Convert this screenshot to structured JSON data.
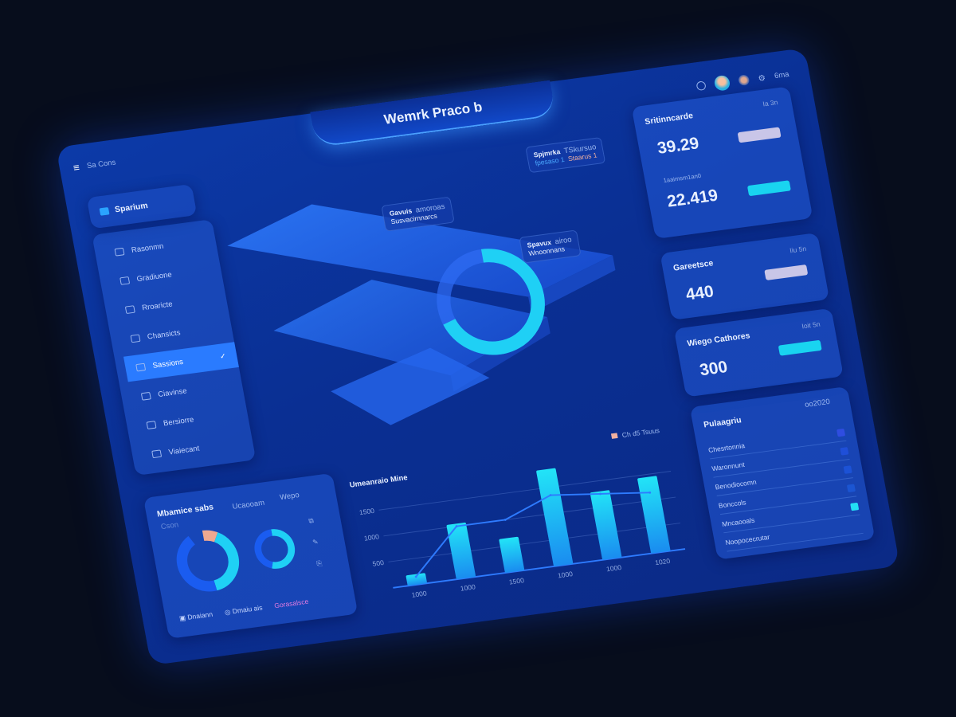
{
  "app": {
    "title": "Wemrk Praco b",
    "menu_label": "Sa Cons"
  },
  "header": {
    "user_label": "6ma",
    "icons": [
      "clock-icon",
      "avatar",
      "avatar-secondary",
      "settings-icon"
    ]
  },
  "sidebar": {
    "header": "Sparium",
    "items": [
      {
        "label": "Rasonmn",
        "icon": "list-icon"
      },
      {
        "label": "Gradiuone",
        "icon": "user-icon"
      },
      {
        "label": "Rroaricte",
        "icon": "calendar-icon"
      },
      {
        "label": "Chansicts",
        "icon": "globe-icon"
      },
      {
        "label": "Sassions",
        "icon": "grid-icon",
        "active": true
      },
      {
        "label": "Ciavinse",
        "icon": "image-icon"
      },
      {
        "label": "Bersiorre",
        "icon": "shield-icon"
      },
      {
        "label": "Viaiecant",
        "icon": "chart-icon"
      }
    ]
  },
  "tooltips": [
    {
      "title": "Spjmrka",
      "meta": "TSkursuo",
      "line1": "fpesaso 1",
      "line2": "Staarus 1"
    },
    {
      "title": "Gavuis",
      "meta": "amoroas",
      "line1": "Susvacirnnarcs"
    },
    {
      "title": "Spavux",
      "meta": "airoo",
      "line1": "Wnoonnans"
    }
  ],
  "kpis": [
    {
      "title": "Sritinncarde",
      "meta": "Ia 3n",
      "value": "39.29",
      "sub": "1aaimsm1an0",
      "value2": "22.419",
      "pill": "#c9c6e8",
      "pill2": "#19d4f0"
    },
    {
      "title": "Gareetsce",
      "meta": "Iiu 5n",
      "value": "440",
      "pill": "#c9c6e8"
    },
    {
      "title": "Wiego Cathores",
      "meta": "Ioit 5n",
      "value": "300",
      "pill": "#19d4f0"
    }
  ],
  "list_card": {
    "title": "Pulaagriu",
    "meta": "oo2020",
    "rows": [
      {
        "label": "Chesrtonnia",
        "color": "#2f4de0"
      },
      {
        "label": "Waronnunt",
        "color": "#1f4fd8"
      },
      {
        "label": "Benodiocomn",
        "color": "#1c52d6"
      },
      {
        "label": "Bonccols",
        "color": "#1b55d2"
      },
      {
        "label": "Mncaooals",
        "color": "#23e0f5"
      },
      {
        "label": "Noopocecrutar",
        "color": ""
      }
    ]
  },
  "donut_card": {
    "title": "Mbamice sabs",
    "col1": "Ucaooam",
    "col2": "Wepo",
    "sub": "Cson",
    "legend": [
      "Dnaiann",
      "Dmaiu ais",
      "Gorasalsce"
    ],
    "donut1": {
      "segments": [
        {
          "value": 0.08,
          "color": "#f0a890"
        },
        {
          "value": 0.4,
          "color": "#1fd0f5"
        },
        {
          "value": 0.44,
          "color": "#1a5cf0"
        }
      ]
    },
    "donut2": {
      "segments": [
        {
          "value": 0.55,
          "color": "#1fd0f5"
        },
        {
          "value": 0.45,
          "color": "#1a5cf0"
        }
      ]
    }
  },
  "center_gauge": {
    "value": 0.7,
    "color": "#1fd0f5"
  },
  "chart_data": {
    "type": "bar",
    "title": "Umeanraio Mine",
    "legend": "Ch d5 Tsuus",
    "categories": [
      "1000",
      "1000",
      "1500",
      "1000",
      "1000",
      "1020"
    ],
    "series": [
      {
        "type": "bar",
        "values": [
          200,
          1050,
          650,
          1850,
          1300,
          1450
        ],
        "color": "#1fd0f5"
      },
      {
        "type": "line",
        "values": [
          150,
          1000,
          1000,
          1350,
          1250,
          1150
        ],
        "color": "#2e7bff"
      }
    ],
    "yticks": [
      "500",
      "1000",
      "1500"
    ],
    "ylim": [
      0,
      2000
    ],
    "grid": true
  }
}
